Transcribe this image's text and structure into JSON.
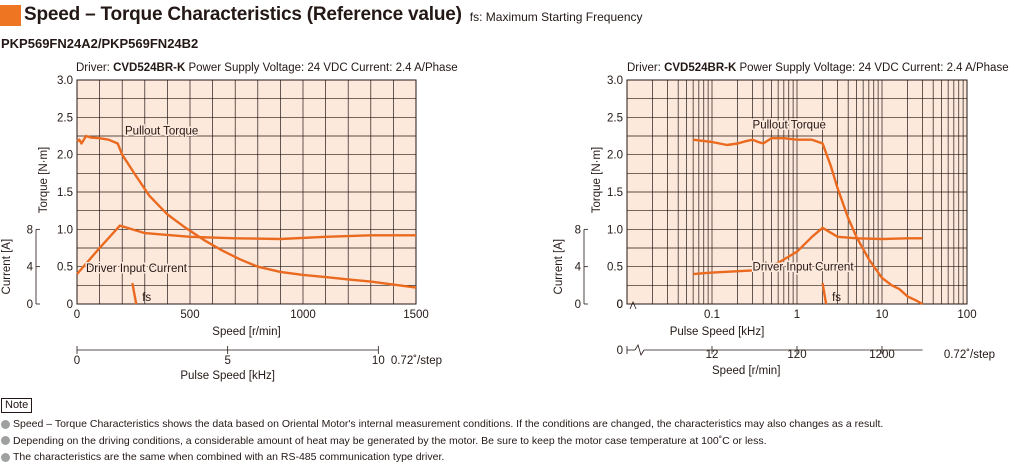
{
  "page": {
    "title": "Speed – Torque Characteristics (Reference value)",
    "subtitle": "fs: Maximum Starting Frequency",
    "model": "PKP569FN24A2/PKP569FN24B2",
    "note_label": "Note",
    "notes": [
      "Speed – Torque Characteristics shows the data based on Oriental Motor's internal measurement conditions. If the conditions are changed, the characteristics may also changes as a result.",
      "Depending on the driving conditions, a considerable amount of heat may be generated by the motor. Be sure to keep the motor case temperature at 100˚C or less.",
      "The characteristics are the same when combined with an RS-485 communication type driver."
    ],
    "colors": {
      "accent": "#ee7623",
      "plot_bg": "#fde8dc",
      "curve": "#ea6a1f",
      "grid": "#231815"
    }
  },
  "chart_data": [
    {
      "type": "line",
      "x_scale": "linear",
      "condition_prefix": "Driver: ",
      "driver": "CVD524BR-K",
      "condition_rest": "  Power Supply Voltage: 24 VDC  Current: 2.4 A/Phase",
      "xlabel": "Speed [r/min]",
      "xlim": [
        0,
        1500
      ],
      "xticks": [
        "0",
        "500",
        "1000",
        "1500"
      ],
      "x2label": "Pulse Speed [kHz]",
      "x2ticks": [
        "0",
        "5",
        "10"
      ],
      "x2max": 11.25,
      "step_label": "0.72˚/step",
      "ylabel": "Torque [N·m]",
      "ylim": [
        0,
        3.0
      ],
      "yticks": [
        "0",
        "0.5",
        "1.0",
        "1.5",
        "2.0",
        "2.5",
        "3.0"
      ],
      "y2label": "Current [A]",
      "y2lim": [
        0,
        8
      ],
      "y2ticks": [
        "0",
        "4",
        "8"
      ],
      "grid": true,
      "series": [
        {
          "name": "Pullout Torque",
          "x": [
            0,
            10,
            20,
            30,
            40,
            60,
            100,
            140,
            180,
            200,
            260,
            320,
            400,
            480,
            560,
            640,
            720,
            800,
            900,
            1000,
            1100,
            1200,
            1300,
            1400,
            1500
          ],
          "y": [
            2.18,
            2.2,
            2.15,
            2.2,
            2.25,
            2.23,
            2.22,
            2.2,
            2.15,
            2.0,
            1.72,
            1.45,
            1.2,
            1.02,
            0.86,
            0.72,
            0.6,
            0.5,
            0.43,
            0.39,
            0.36,
            0.33,
            0.3,
            0.26,
            0.22
          ]
        },
        {
          "name": "Driver Input Current",
          "x": [
            0,
            100,
            190,
            300,
            500,
            700,
            900,
            1100,
            1300,
            1500
          ],
          "y": [
            0.4,
            0.75,
            1.05,
            0.95,
            0.9,
            0.88,
            0.87,
            0.9,
            0.92,
            0.92
          ]
        }
      ],
      "fs": {
        "label": "fs",
        "x": [
          245,
          262
        ],
        "y": [
          0.28,
          0.0
        ]
      }
    },
    {
      "type": "line",
      "x_scale": "log",
      "condition_prefix": "Driver: ",
      "driver": "CVD524BR-K",
      "condition_rest": "  Power Supply Voltage: 24 VDC  Current: 2.4 A/Phase",
      "xlabel": "Pulse Speed [kHz]",
      "xlim": [
        0.01,
        100
      ],
      "xticks": [
        "0",
        "0.1",
        "1",
        "10",
        "100"
      ],
      "x2label": "Speed [r/min]",
      "x2ticks": [
        "0",
        "12",
        "120",
        "1200"
      ],
      "step_label": "0.72˚/step",
      "ylabel": "Torque [N·m]",
      "ylim": [
        0,
        3.0
      ],
      "yticks": [
        "0",
        "0.5",
        "1.0",
        "1.5",
        "2.0",
        "2.5",
        "3.0"
      ],
      "y2label": "Current [A]",
      "y2lim": [
        0,
        8
      ],
      "y2ticks": [
        "0",
        "4",
        "8"
      ],
      "grid": true,
      "series": [
        {
          "name": "Pullout Torque",
          "x": [
            0.06,
            0.1,
            0.15,
            0.2,
            0.25,
            0.3,
            0.35,
            0.4,
            0.5,
            0.7,
            1.0,
            1.5,
            2.0,
            2.5,
            3.0,
            4.0,
            5.0,
            7.0,
            10.0,
            13.0,
            16.0,
            20.0,
            25.0,
            30.0
          ],
          "y": [
            2.2,
            2.17,
            2.13,
            2.15,
            2.18,
            2.2,
            2.17,
            2.15,
            2.22,
            2.22,
            2.2,
            2.2,
            2.15,
            1.85,
            1.55,
            1.15,
            0.9,
            0.6,
            0.35,
            0.25,
            0.2,
            0.1,
            0.05,
            0.0
          ]
        },
        {
          "name": "Driver Input Current",
          "x": [
            0.06,
            0.1,
            0.3,
            0.6,
            1.0,
            1.5,
            2.0,
            3.0,
            5.0,
            10.0,
            20.0,
            30.0
          ],
          "y": [
            0.4,
            0.42,
            0.45,
            0.55,
            0.7,
            0.9,
            1.02,
            0.9,
            0.88,
            0.87,
            0.88,
            0.88
          ]
        }
      ],
      "fs": {
        "label": "fs",
        "x": [
          2.0,
          2.2
        ],
        "y": [
          0.28,
          0.0
        ]
      }
    }
  ]
}
